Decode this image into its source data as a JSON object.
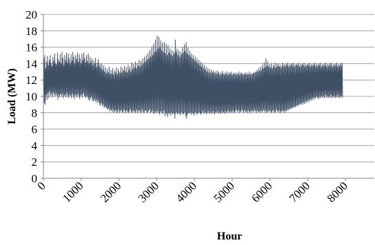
{
  "chart_data": {
    "type": "line",
    "title": "",
    "xlabel": "Hour",
    "ylabel": "Load (MW)",
    "xlim": [
      0,
      8760
    ],
    "ylim": [
      0,
      20
    ],
    "x_ticks": [
      0,
      1000,
      2000,
      3000,
      4000,
      5000,
      6000,
      7000,
      8000
    ],
    "x_tick_labels": [
      "0",
      "1000",
      "2000",
      "3000",
      "4000",
      "5000",
      "6000",
      "7000",
      "8000"
    ],
    "y_ticks": [
      0,
      2,
      4,
      6,
      8,
      10,
      12,
      14,
      16,
      18,
      20
    ],
    "y_tick_labels": [
      "0",
      "2",
      "4",
      "6",
      "8",
      "10",
      "12",
      "14",
      "16",
      "18",
      "20"
    ],
    "grid": "horizontal",
    "legend": "none",
    "series": [
      {
        "color": "#3f4f66",
        "x_step": 24,
        "daily_min": [
          10.5,
          9.2,
          9.0,
          10.2,
          9.6,
          10.4,
          9.8,
          10.6,
          10.1,
          10.3,
          9.9,
          10.5,
          10.2,
          10.0,
          10.4,
          10.1,
          9.6,
          10.2,
          9.9,
          10.3,
          10.0,
          10.3,
          9.8,
          10.1,
          10.2,
          9.9,
          10.4,
          10.0,
          9.8,
          10.2,
          10.1,
          9.8,
          10.3,
          10.0,
          9.7,
          10.2,
          10.1,
          9.9,
          10.3,
          10.0,
          9.7,
          10.1,
          10.2,
          9.9,
          10.4,
          10.1,
          10.0,
          9.8,
          10.1,
          9.9,
          9.6,
          9.5,
          9.8,
          10.0,
          9.5,
          9.4,
          9.7,
          9.5,
          9.3,
          9.6,
          9.2,
          9.4,
          9.0,
          8.9,
          9.2,
          8.8,
          9.0,
          8.6,
          8.8,
          8.7,
          8.5,
          8.4,
          8.6,
          8.2,
          8.4,
          8.3,
          8.1,
          8.4,
          8.0,
          8.2,
          8.3,
          8.0,
          8.1,
          8.4,
          8.0,
          8.2,
          8.3,
          8.1,
          8.0,
          8.4,
          8.2,
          8.0,
          8.3,
          8.1,
          8.0,
          8.2,
          8.4,
          8.1,
          8.0,
          8.3,
          8.2,
          8.0,
          8.1,
          8.4,
          8.0,
          8.2,
          8.3,
          8.1,
          8.0,
          8.4,
          8.1,
          8.0,
          8.2,
          8.3,
          8.0,
          8.1,
          8.2,
          8.4,
          8.0,
          8.1,
          8.3,
          8.0,
          7.9,
          8.2,
          8.0,
          8.1,
          8.3,
          8.0,
          7.8,
          8.1,
          8.2,
          7.9,
          8.0,
          8.3,
          7.6,
          8.0,
          7.8,
          7.5,
          8.0,
          7.9,
          7.7,
          8.1,
          7.8,
          7.9,
          8.0,
          7.3,
          7.9,
          8.1,
          7.8,
          8.0,
          7.9,
          7.7,
          8.1,
          8.0,
          7.8,
          7.9,
          8.1,
          7.6,
          7.3,
          7.8,
          8.0,
          7.9,
          8.1,
          7.8,
          8.0,
          7.9,
          7.7,
          8.0,
          8.1,
          7.8,
          7.9,
          8.0,
          8.1,
          7.9,
          7.8,
          8.0,
          8.2,
          7.9,
          8.0,
          8.1,
          7.8,
          8.0,
          8.2,
          7.9,
          8.1,
          8.0,
          7.9,
          8.2,
          8.0,
          7.8,
          8.1,
          8.0,
          8.2,
          7.9,
          8.1,
          8.0,
          7.9,
          8.2,
          8.0,
          8.1,
          7.9,
          8.2,
          8.0,
          8.1,
          8.3,
          8.0,
          8.1,
          8.2,
          8.0,
          8.3,
          8.1,
          8.0,
          8.2,
          8.4,
          8.1,
          8.3,
          8.0,
          8.2,
          8.1,
          8.4,
          8.2,
          8.0,
          8.3,
          8.1,
          8.2,
          8.0,
          8.3,
          8.1,
          8.2,
          8.0,
          8.3,
          8.2,
          8.1,
          8.4,
          8.2,
          8.0,
          8.3,
          8.1,
          8.2,
          8.0,
          8.3,
          8.1,
          8.2,
          8.4,
          8.1,
          8.3,
          8.0,
          8.2,
          8.1,
          8.3,
          8.2,
          8.0,
          8.1,
          8.3,
          8.2,
          8.0,
          8.1,
          8.4,
          8.2,
          8.1,
          8.3,
          8.0,
          8.2,
          8.1,
          8.3,
          8.2,
          8.0,
          8.3,
          8.2,
          8.4,
          8.3,
          8.5,
          8.4,
          8.6,
          8.5,
          8.7,
          8.6,
          8.8,
          8.7,
          8.9,
          8.8,
          9.0,
          8.9,
          9.1,
          9.0,
          9.2,
          9.0,
          9.3,
          9.1,
          9.4,
          9.2,
          9.5,
          9.3,
          9.6,
          9.4,
          9.7,
          9.5,
          9.8,
          9.6,
          9.9,
          9.7,
          10.0,
          9.8,
          9.9,
          9.7,
          10.0,
          9.8,
          10.1,
          9.9,
          10.0,
          9.8,
          10.2,
          9.9,
          10.1,
          9.8,
          10.0,
          9.9,
          10.2,
          9.8,
          10.0,
          9.9,
          10.1,
          9.8,
          10.0,
          9.9,
          10.2,
          9.8,
          10.0,
          9.9,
          10.1,
          9.8,
          10.0,
          9.9,
          10.2,
          9.8,
          10.0,
          9.9,
          10.1,
          9.8,
          10.0,
          9.9,
          10.2,
          9.8,
          10.0
        ],
        "daily_max": [
          14.6,
          15.0,
          13.4,
          14.2,
          14.9,
          13.8,
          14.4,
          15.0,
          14.1,
          13.7,
          14.8,
          14.3,
          15.2,
          14.0,
          13.9,
          15.3,
          14.5,
          14.2,
          15.1,
          14.0,
          15.4,
          14.7,
          13.8,
          15.0,
          14.4,
          15.3,
          14.1,
          15.2,
          14.6,
          14.0,
          15.1,
          14.3,
          15.4,
          14.8,
          14.0,
          15.0,
          14.5,
          15.3,
          14.2,
          15.1,
          14.6,
          14.0,
          15.2,
          14.4,
          15.3,
          14.7,
          14.1,
          15.0,
          14.3,
          15.2,
          14.0,
          14.8,
          14.2,
          14.6,
          13.8,
          14.4,
          14.0,
          14.7,
          13.6,
          14.1,
          14.5,
          13.7,
          14.0,
          13.4,
          13.9,
          13.2,
          13.7,
          13.0,
          13.5,
          12.8,
          13.3,
          12.9,
          13.6,
          12.7,
          13.2,
          12.8,
          13.4,
          12.6,
          13.1,
          12.9,
          13.5,
          12.7,
          13.3,
          13.0,
          12.8,
          13.6,
          12.9,
          13.4,
          13.1,
          13.7,
          13.0,
          13.5,
          12.9,
          13.8,
          13.2,
          13.6,
          13.0,
          14.1,
          13.3,
          13.9,
          13.5,
          14.2,
          13.4,
          14.0,
          13.7,
          14.4,
          13.6,
          14.3,
          13.8,
          14.6,
          14.0,
          14.8,
          14.2,
          15.0,
          14.4,
          15.3,
          14.6,
          15.6,
          14.8,
          16.0,
          15.0,
          16.4,
          15.3,
          16.9,
          15.5,
          17.4,
          15.8,
          17.2,
          16.0,
          16.8,
          15.6,
          16.5,
          15.4,
          16.6,
          15.2,
          16.4,
          15.0,
          16.2,
          15.3,
          15.8,
          15.1,
          15.6,
          14.9,
          15.5,
          15.2,
          16.9,
          15.4,
          15.8,
          15.0,
          15.6,
          14.8,
          15.4,
          15.1,
          16.0,
          15.3,
          16.3,
          15.5,
          16.6,
          15.2,
          15.9,
          15.0,
          15.5,
          14.8,
          15.2,
          14.6,
          15.0,
          14.4,
          14.8,
          14.2,
          14.6,
          14.0,
          14.4,
          13.8,
          14.2,
          13.6,
          14.0,
          13.4,
          13.8,
          13.2,
          13.6,
          13.0,
          13.4,
          12.9,
          13.3,
          12.8,
          13.2,
          12.9,
          13.1,
          12.8,
          13.0,
          12.7,
          13.1,
          12.8,
          13.0,
          12.6,
          12.9,
          12.7,
          13.1,
          12.8,
          12.6,
          12.9,
          12.7,
          13.0,
          12.6,
          12.8,
          12.9,
          12.7,
          13.0,
          12.6,
          12.8,
          12.7,
          12.9,
          12.6,
          12.8,
          12.7,
          13.0,
          12.6,
          12.8,
          12.9,
          12.7,
          12.6,
          12.8,
          12.7,
          12.9,
          12.6,
          12.8,
          12.7,
          13.0,
          12.6,
          12.8,
          12.7,
          12.9,
          12.8,
          13.0,
          12.9,
          13.2,
          13.0,
          13.4,
          13.1,
          13.6,
          13.2,
          13.8,
          13.4,
          14.1,
          13.5,
          14.6,
          13.7,
          14.2,
          13.6,
          13.9,
          13.5,
          14.0,
          13.4,
          13.8,
          13.6,
          14.1,
          13.5,
          13.9,
          13.7,
          14.0,
          13.6,
          13.8,
          13.5,
          14.1,
          13.7,
          13.9,
          13.6,
          14.0,
          13.8,
          14.1,
          13.6,
          13.9,
          13.7,
          14.0,
          13.8,
          14.1,
          13.6,
          13.9,
          13.7,
          14.0,
          13.8,
          14.1,
          13.6,
          13.9,
          13.7,
          14.0,
          13.8,
          14.1,
          13.6,
          13.9,
          13.7,
          14.0,
          13.8,
          14.1,
          13.6,
          13.9,
          13.7,
          14.0,
          13.8,
          14.1,
          13.6,
          13.9,
          13.7,
          14.0,
          13.8,
          14.1,
          13.6,
          13.9,
          13.7,
          14.0,
          13.8,
          14.1,
          13.6,
          13.9,
          13.7,
          14.0,
          13.8,
          14.1,
          13.6,
          13.9,
          13.7,
          14.0,
          13.8,
          14.1,
          13.6,
          13.9,
          13.7,
          14.0,
          13.8,
          14.1
        ]
      }
    ]
  }
}
